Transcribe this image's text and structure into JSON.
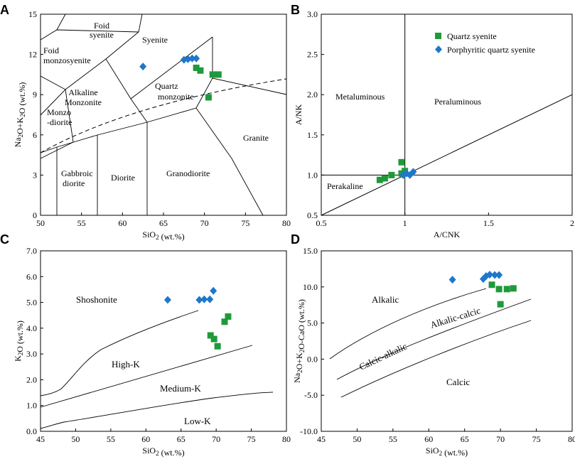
{
  "panels": {
    "A": "A",
    "B": "B",
    "C": "C",
    "D": "D"
  },
  "colors": {
    "quartz_syenite": "#1e9a3a",
    "porphyritic_quartz_syenite": "#1f77c9",
    "line": "#000000"
  },
  "chart_data": [
    {
      "panel": "A",
      "type": "scatter",
      "title": "",
      "xlabel": "SiO2 (wt.%)",
      "ylabel": "Na2O+K2O (wt.%)",
      "xlim": [
        50,
        80
      ],
      "ylim": [
        0,
        15
      ],
      "xticks": [
        50,
        55,
        60,
        65,
        70,
        75,
        80
      ],
      "yticks": [
        0,
        3,
        6,
        9,
        12,
        15
      ],
      "field_labels": {
        "foid_syenite": [
          "Foid",
          "syenite"
        ],
        "syenite": "Syenite",
        "foid_monzosyenite": [
          "Foid",
          "monzosyenite"
        ],
        "alkaline_monzonite": [
          "Alkaline",
          "Monzonite"
        ],
        "quartz_monzonite": [
          "Quartz",
          "monzonite"
        ],
        "monzo_diorite": [
          "Monzo",
          "-diorite"
        ],
        "granite": "Granite",
        "gabbroic_diorite": [
          "Gabbroic",
          "diorite"
        ],
        "diorite": "Diorite",
        "granodiorite": "Granodiorite"
      },
      "series": [
        {
          "name": "Quartz syenite",
          "marker": "square",
          "points": [
            [
              69.0,
              11.0
            ],
            [
              69.5,
              10.8
            ],
            [
              71.0,
              10.5
            ],
            [
              71.7,
              10.5
            ],
            [
              70.5,
              8.8
            ]
          ]
        },
        {
          "name": "Porphyritic quartz syenite",
          "marker": "diamond",
          "points": [
            [
              62.5,
              11.1
            ],
            [
              67.5,
              11.6
            ],
            [
              68.0,
              11.65
            ],
            [
              68.5,
              11.7
            ],
            [
              69.0,
              11.7
            ]
          ]
        }
      ]
    },
    {
      "panel": "B",
      "type": "scatter",
      "title": "",
      "xlabel": "A/CNK",
      "ylabel": "A/NK",
      "xlim": [
        0.5,
        2.0
      ],
      "ylim": [
        0.5,
        3.0
      ],
      "xticks": [
        0.5,
        1.0,
        1.5,
        2.0
      ],
      "yticks": [
        0.5,
        1.0,
        1.5,
        2.0,
        2.5,
        3.0
      ],
      "x_tick_labels": [
        "0.5",
        "1",
        "1.5",
        "2"
      ],
      "y_tick_labels": [
        "0.5",
        "1.0",
        "1.5",
        "2.0",
        "2.5",
        "3.0"
      ],
      "field_labels": {
        "metaluminous": "Metaluminous",
        "peraluminous": "Peraluminous",
        "peralkaline": "Perakaline"
      },
      "legend": [
        "Quartz syenite",
        "Porphyritic quartz syenite"
      ],
      "legend_position": "top-right",
      "series": [
        {
          "name": "Quartz syenite",
          "marker": "square",
          "points": [
            [
              0.85,
              0.94
            ],
            [
              0.88,
              0.96
            ],
            [
              0.92,
              1.0
            ],
            [
              0.98,
              1.02
            ],
            [
              0.98,
              1.16
            ],
            [
              1.0,
              1.05
            ]
          ]
        },
        {
          "name": "Porphyritic quartz syenite",
          "marker": "diamond",
          "points": [
            [
              0.99,
              1.0
            ],
            [
              1.01,
              1.02
            ],
            [
              1.03,
              1.0
            ],
            [
              1.05,
              1.04
            ]
          ]
        }
      ]
    },
    {
      "panel": "C",
      "type": "scatter",
      "title": "",
      "xlabel": "SiO2 (wt.%)",
      "ylabel": "K2O (wt.%)",
      "xlim": [
        45,
        80
      ],
      "ylim": [
        0,
        7
      ],
      "xticks": [
        45,
        50,
        55,
        60,
        65,
        70,
        75,
        80
      ],
      "yticks": [
        0,
        1,
        2,
        3,
        4,
        5,
        6,
        7
      ],
      "y_tick_labels": [
        "0.0",
        "1.0",
        "2.0",
        "3.0",
        "4.0",
        "5.0",
        "6.0",
        "7.0"
      ],
      "field_labels": {
        "shoshonite": "Shoshonite",
        "high_k": "High-K",
        "medium_k": "Medium-K",
        "low_k": "Low-K"
      },
      "series": [
        {
          "name": "Quartz syenite",
          "marker": "square",
          "points": [
            [
              69.2,
              3.72
            ],
            [
              69.7,
              3.58
            ],
            [
              70.2,
              3.3
            ],
            [
              71.2,
              4.25
            ],
            [
              71.7,
              4.45
            ]
          ]
        },
        {
          "name": "Porphyritic quartz syenite",
          "marker": "diamond",
          "points": [
            [
              63.1,
              5.1
            ],
            [
              67.6,
              5.1
            ],
            [
              68.3,
              5.12
            ],
            [
              69.1,
              5.12
            ],
            [
              69.6,
              5.45
            ]
          ]
        }
      ]
    },
    {
      "panel": "D",
      "type": "scatter",
      "title": "",
      "xlabel": "SiO2 (wt.%)",
      "ylabel": "Na2O+K2O-CaO (wt.%)",
      "xlim": [
        45,
        80
      ],
      "ylim": [
        -10,
        15
      ],
      "xticks": [
        45,
        50,
        55,
        60,
        65,
        70,
        75,
        80
      ],
      "yticks": [
        -10,
        -5,
        0,
        5,
        10,
        15
      ],
      "y_tick_labels": [
        "-10.0",
        "-5.0",
        "0.0",
        "5.0",
        "10.0",
        "15.0"
      ],
      "field_labels": {
        "alkalic": "Alkalic",
        "alkalic_calcic": "Alkalic-calcic",
        "calcic_alkalic": "Calcic-alkalic",
        "calcic": "Calcic"
      },
      "series": [
        {
          "name": "Quartz syenite",
          "marker": "square",
          "points": [
            [
              68.8,
              10.3
            ],
            [
              69.8,
              9.7
            ],
            [
              70.0,
              7.6
            ],
            [
              70.9,
              9.7
            ],
            [
              71.8,
              9.8
            ]
          ]
        },
        {
          "name": "Porphyritic quartz syenite",
          "marker": "diamond",
          "points": [
            [
              63.3,
              11.0
            ],
            [
              67.6,
              11.1
            ],
            [
              68.0,
              11.5
            ],
            [
              68.5,
              11.7
            ],
            [
              69.2,
              11.65
            ],
            [
              69.8,
              11.65
            ]
          ]
        }
      ]
    }
  ]
}
